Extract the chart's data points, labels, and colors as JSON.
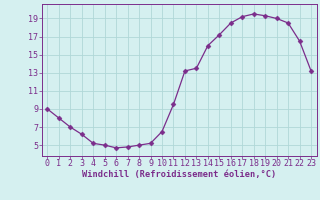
{
  "x": [
    0,
    1,
    2,
    3,
    4,
    5,
    6,
    7,
    8,
    9,
    10,
    11,
    12,
    13,
    14,
    15,
    16,
    17,
    18,
    19,
    20,
    21,
    22,
    23
  ],
  "y": [
    9,
    8,
    7,
    6.2,
    5.2,
    5.0,
    4.7,
    4.8,
    5.0,
    5.2,
    6.5,
    9.5,
    13.2,
    13.5,
    16.0,
    17.2,
    18.5,
    19.2,
    19.5,
    19.3,
    19.0,
    18.5,
    16.5,
    13.2
  ],
  "line_color": "#7b2d8b",
  "marker": "D",
  "marker_size": 2.5,
  "bg_color": "#d5f0f0",
  "grid_color": "#b0d8d8",
  "xlabel": "Windchill (Refroidissement éolien,°C)",
  "ylabel": "",
  "yticks": [
    5,
    7,
    9,
    11,
    13,
    15,
    17,
    19
  ],
  "xticks": [
    0,
    1,
    2,
    3,
    4,
    5,
    6,
    7,
    8,
    9,
    10,
    11,
    12,
    13,
    14,
    15,
    16,
    17,
    18,
    19,
    20,
    21,
    22,
    23
  ],
  "ylim": [
    3.8,
    20.6
  ],
  "xlim": [
    -0.5,
    23.5
  ],
  "axis_color": "#7b2d8b",
  "tick_color": "#7b2d8b",
  "tick_fontsize": 6.0,
  "xlabel_fontsize": 6.2
}
